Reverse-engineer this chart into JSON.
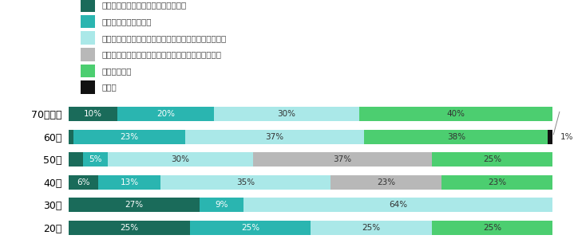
{
  "categories": [
    "70代以上",
    "60代",
    "50代",
    "40代",
    "30代",
    "20代"
  ],
  "series": [
    {
      "label": "なるべく早く導入し、周囲にも勧める",
      "color": "#1a6b5a",
      "values": [
        10,
        1,
        3,
        6,
        27,
        25
      ]
    },
    {
      "label": "なるべく早く導入する",
      "color": "#2ab5b0",
      "values": [
        20,
        23,
        5,
        13,
        9,
        25
      ]
    },
    {
      "label": "周囲の状況をみて、同じくらいのタイミングで導入する",
      "color": "#aae8e8",
      "values": [
        30,
        37,
        30,
        35,
        64,
        25
      ]
    },
    {
      "label": "周囲の状況をみて、遅れてもいいので慎重に検討する",
      "color": "#b8b8b8",
      "values": [
        0,
        0,
        37,
        23,
        0,
        0
      ]
    },
    {
      "label": "導入はしない",
      "color": "#4cce70",
      "values": [
        40,
        38,
        25,
        23,
        0,
        25
      ]
    },
    {
      "label": "その他",
      "color": "#111111",
      "values": [
        0,
        1,
        0,
        0,
        0,
        0
      ]
    }
  ],
  "legend_fontsize": 7.5,
  "bar_label_fontsize": 7.5,
  "ylabel_fontsize": 9,
  "figsize": [
    7.19,
    3.0
  ],
  "dpi": 100,
  "white_text_colors": [
    "#1a6b5a",
    "#2ab5b0",
    "#111111"
  ],
  "dark_text_colors": [
    "#aae8e8",
    "#b8b8b8",
    "#4cce70"
  ]
}
